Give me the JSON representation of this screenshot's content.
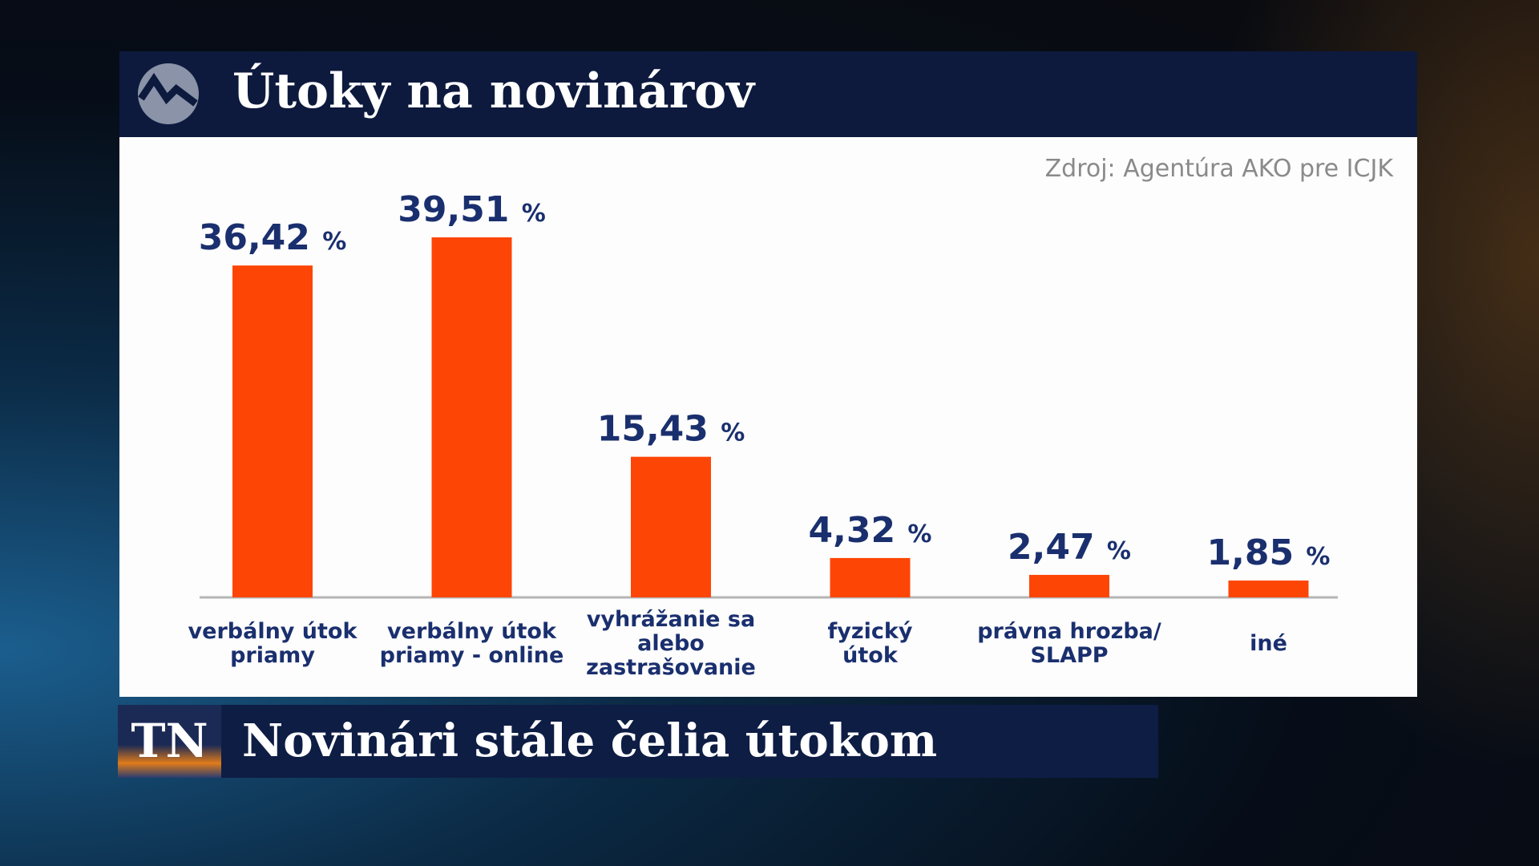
{
  "chart_data": {
    "type": "bar",
    "title": "Útoky na novinárov",
    "source": "Zdroj: Agentúra AKO pre ICJK",
    "categories": [
      "verbálny útok\npriamy",
      "verbálny útok\npriamy - online",
      "vyhrážanie sa\nalebo\nzastrašovanie",
      "fyzický\nútok",
      "právna hrozba/\nSLAPP",
      "iné"
    ],
    "values": [
      36.42,
      39.51,
      15.43,
      4.32,
      2.47,
      1.85
    ],
    "value_labels": [
      "36,42 %",
      "39,51 %",
      "15,43 %",
      "4,32 %",
      "2,47 %",
      "1,85 %"
    ],
    "color": "#fd4606"
  },
  "ticker": {
    "logo": "TN",
    "headline": "Novinári stále čelia útokom"
  }
}
